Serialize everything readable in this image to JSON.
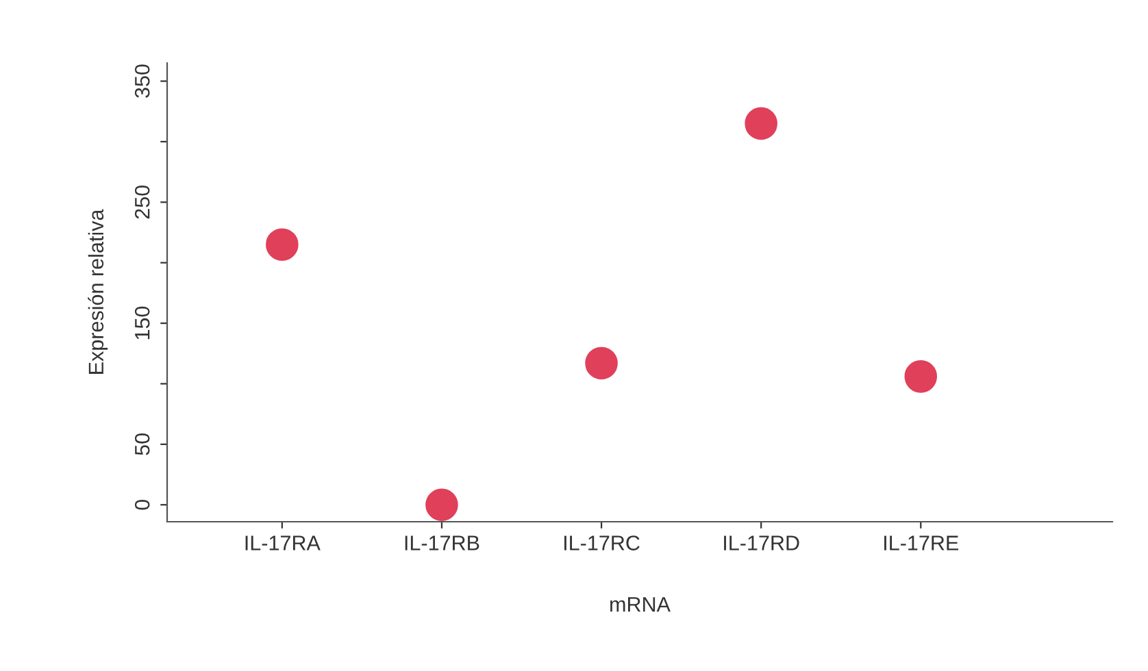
{
  "chart_data": {
    "type": "scatter",
    "xlabel": "mRNA",
    "ylabel": "Expresión relativa",
    "categories": [
      "IL-17RA",
      "IL-17RB",
      "IL-17RC",
      "IL-17RD",
      "IL-17RE"
    ],
    "series": [
      {
        "color": "#e0405a",
        "values": [
          215,
          0,
          117,
          315,
          106
        ]
      }
    ],
    "ylim": [
      -14,
      365
    ],
    "yticks": [
      0,
      50,
      {
        "value": 100,
        "label": null
      },
      150,
      {
        "value": 200,
        "label": null
      },
      250,
      {
        "value": 300,
        "label": null
      },
      350
    ],
    "marker": "circle",
    "grid": false
  }
}
